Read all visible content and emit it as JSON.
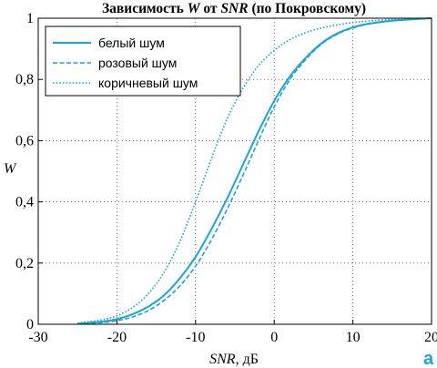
{
  "chart_data": {
    "type": "line",
    "title_prefix": "Зависимость ",
    "title_w": "W",
    "title_mid": " от ",
    "title_snr": "SNR",
    "title_suffix": " (по Покровскому)",
    "xlabel_var": "SNR",
    "xlabel_unit": ", дБ",
    "ylabel": "W",
    "xlim": [
      -30,
      20
    ],
    "ylim": [
      0,
      1
    ],
    "x_ticks": [
      -30,
      -20,
      -10,
      0,
      10,
      20
    ],
    "x_tick_labels": [
      "-30",
      "-20",
      "-10",
      "0",
      "10",
      "20"
    ],
    "y_ticks": [
      0,
      0.2,
      0.4,
      0.6,
      0.8,
      1
    ],
    "y_tick_labels": [
      "0",
      "0,2",
      "0,4",
      "0,6",
      "0,8",
      "1"
    ],
    "grid": true,
    "legend_position": "top-left",
    "panel_letter": "а",
    "series": [
      {
        "name": "белый шум",
        "style": "solid",
        "color": "#1aa6d2",
        "x": [
          -25,
          -22,
          -20,
          -18,
          -16,
          -14,
          -12,
          -10,
          -8,
          -6,
          -4,
          -2,
          0,
          2,
          4,
          6,
          8,
          10,
          12,
          15,
          18,
          20
        ],
        "y": [
          0.002,
          0.008,
          0.017,
          0.033,
          0.058,
          0.095,
          0.15,
          0.22,
          0.31,
          0.41,
          0.52,
          0.63,
          0.73,
          0.81,
          0.87,
          0.918,
          0.95,
          0.97,
          0.982,
          0.992,
          0.997,
          1.0
        ]
      },
      {
        "name": "розовый шум",
        "style": "dashed",
        "color": "#1aa6d2",
        "x": [
          -25,
          -22,
          -20,
          -18,
          -16,
          -14,
          -12,
          -10,
          -8,
          -6,
          -4,
          -2,
          0,
          2,
          4,
          6,
          8,
          10,
          12,
          15,
          18,
          20
        ],
        "y": [
          0.001,
          0.005,
          0.012,
          0.024,
          0.045,
          0.078,
          0.125,
          0.19,
          0.275,
          0.375,
          0.485,
          0.6,
          0.71,
          0.8,
          0.865,
          0.915,
          0.948,
          0.968,
          0.981,
          0.991,
          0.997,
          1.0
        ]
      },
      {
        "name": "коричневый шум",
        "style": "dotted",
        "color": "#1aa6d2",
        "x": [
          -25,
          -22,
          -20,
          -18,
          -16,
          -14,
          -12,
          -10,
          -8,
          -6,
          -4,
          -2,
          0,
          2,
          4,
          6,
          8,
          10,
          12,
          15,
          18,
          20
        ],
        "y": [
          0.004,
          0.014,
          0.028,
          0.055,
          0.1,
          0.17,
          0.27,
          0.4,
          0.54,
          0.67,
          0.77,
          0.845,
          0.895,
          0.93,
          0.953,
          0.968,
          0.978,
          0.986,
          0.991,
          0.996,
          0.999,
          1.0
        ]
      }
    ]
  }
}
